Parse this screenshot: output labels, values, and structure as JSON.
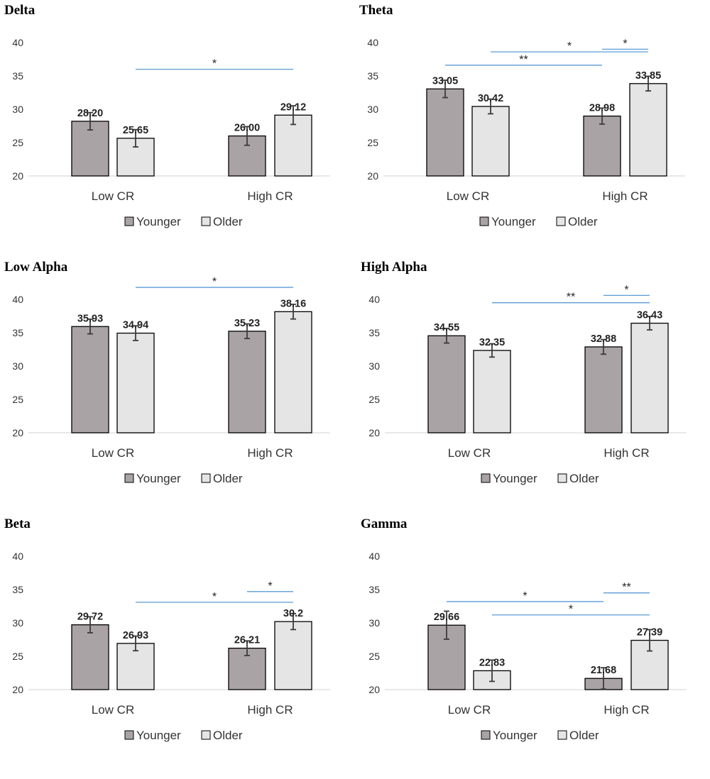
{
  "colors": {
    "younger": "#aaa3a5",
    "older": "#e5e5e5",
    "bar_border": "#000000",
    "axis": "#d9d9d9",
    "error_bar": "#3b3b3b",
    "significance": "#5b9bd5"
  },
  "legend": {
    "younger": "Younger",
    "older": "Older"
  },
  "chart_data": [
    {
      "type": "bar",
      "title": "Delta",
      "categories": [
        "Low CR",
        "High CR"
      ],
      "series": [
        {
          "name": "Younger",
          "values": [
            28.2,
            26.0
          ],
          "labels": [
            "28.20",
            "26.00"
          ],
          "errors": [
            1.3,
            1.4
          ]
        },
        {
          "name": "Older",
          "values": [
            25.65,
            29.12
          ],
          "labels": [
            "25.65",
            "29.12"
          ],
          "errors": [
            1.3,
            1.4
          ]
        }
      ],
      "ylim": [
        20,
        40
      ],
      "yticks": [
        "20",
        "25",
        "30",
        "35",
        "40"
      ],
      "significance": [
        {
          "label": "*",
          "from": "Low CR Older",
          "to": "High CR Older",
          "level": 36.0
        }
      ]
    },
    {
      "type": "bar",
      "title": "Theta",
      "categories": [
        "Low CR",
        "High CR"
      ],
      "series": [
        {
          "name": "Younger",
          "values": [
            33.05,
            28.98
          ],
          "labels": [
            "33.05",
            "28.98"
          ],
          "errors": [
            1.3,
            1.2
          ]
        },
        {
          "name": "Older",
          "values": [
            30.42,
            33.85
          ],
          "labels": [
            "30.42",
            "33.85"
          ],
          "errors": [
            1.1,
            1.1
          ]
        }
      ],
      "ylim": [
        20,
        40
      ],
      "yticks": [
        "20",
        "25",
        "30",
        "35",
        "40"
      ],
      "significance": [
        {
          "label": "*",
          "from": "High CR Younger",
          "to": "High CR Older",
          "level": 39.0
        },
        {
          "label": "*",
          "from": "Low CR Older",
          "to": "High CR Older",
          "level": 38.6
        },
        {
          "label": "**",
          "from": "Low CR Younger",
          "to": "High CR Younger",
          "level": 36.6
        }
      ]
    },
    {
      "type": "bar",
      "title": "Low Alpha",
      "categories": [
        "Low CR",
        "High CR"
      ],
      "series": [
        {
          "name": "Younger",
          "values": [
            35.93,
            35.23
          ],
          "labels": [
            "35.93",
            "35.23"
          ],
          "errors": [
            1.1,
            1.1
          ]
        },
        {
          "name": "Older",
          "values": [
            34.94,
            38.16
          ],
          "labels": [
            "34.94",
            "38.16"
          ],
          "errors": [
            1.1,
            1.1
          ]
        }
      ],
      "ylim": [
        20,
        40
      ],
      "yticks": [
        "20",
        "25",
        "30",
        "35",
        "40"
      ],
      "significance": [
        {
          "label": "*",
          "from": "Low CR Older",
          "to": "High CR Older",
          "level": 41.8
        }
      ]
    },
    {
      "type": "bar",
      "title": "High Alpha",
      "categories": [
        "Low CR",
        "High CR"
      ],
      "series": [
        {
          "name": "Younger",
          "values": [
            34.55,
            32.88
          ],
          "labels": [
            "34.55",
            "32.88"
          ],
          "errors": [
            1.1,
            1.1
          ]
        },
        {
          "name": "Older",
          "values": [
            32.35,
            36.43
          ],
          "labels": [
            "32.35",
            "36.43"
          ],
          "errors": [
            1.0,
            1.0
          ]
        }
      ],
      "ylim": [
        20,
        40
      ],
      "yticks": [
        "20",
        "25",
        "30",
        "35",
        "40"
      ],
      "significance": [
        {
          "label": "*",
          "from": "High CR Younger",
          "to": "High CR Older",
          "level": 40.6
        },
        {
          "label": "**",
          "from": "Low CR Older",
          "to": "High CR Older",
          "level": 39.5
        }
      ]
    },
    {
      "type": "bar",
      "title": "Beta",
      "categories": [
        "Low CR",
        "High CR"
      ],
      "series": [
        {
          "name": "Younger",
          "values": [
            29.72,
            26.21
          ],
          "labels": [
            "29.72",
            "26.21"
          ],
          "errors": [
            1.2,
            1.1
          ]
        },
        {
          "name": "Older",
          "values": [
            26.93,
            30.2
          ],
          "labels": [
            "26.93",
            "30.2"
          ],
          "errors": [
            1.1,
            1.2
          ]
        }
      ],
      "ylim": [
        20,
        40
      ],
      "yticks": [
        "20",
        "25",
        "30",
        "35",
        "40"
      ],
      "significance": [
        {
          "label": "*",
          "from": "High CR Younger",
          "to": "High CR Older",
          "level": 34.7
        },
        {
          "label": "*",
          "from": "Low CR Older",
          "to": "High CR Older",
          "level": 33.1
        }
      ]
    },
    {
      "type": "bar",
      "title": "Gamma",
      "categories": [
        "Low CR",
        "High CR"
      ],
      "series": [
        {
          "name": "Younger",
          "values": [
            29.66,
            21.68
          ],
          "labels": [
            "29.66",
            "21.68"
          ],
          "errors": [
            2.1,
            1.6
          ]
        },
        {
          "name": "Older",
          "values": [
            22.83,
            27.39
          ],
          "labels": [
            "22.83",
            "27.39"
          ],
          "errors": [
            1.6,
            1.6
          ]
        }
      ],
      "ylim": [
        20,
        40
      ],
      "yticks": [
        "20",
        "25",
        "30",
        "35",
        "40"
      ],
      "significance": [
        {
          "label": "**",
          "from": "High CR Younger",
          "to": "High CR Older",
          "level": 34.5
        },
        {
          "label": "*",
          "from": "Low CR Younger",
          "to": "High CR Younger",
          "level": 33.2
        },
        {
          "label": "*",
          "from": "Low CR Older",
          "to": "High CR Older",
          "level": 31.2
        }
      ]
    }
  ]
}
